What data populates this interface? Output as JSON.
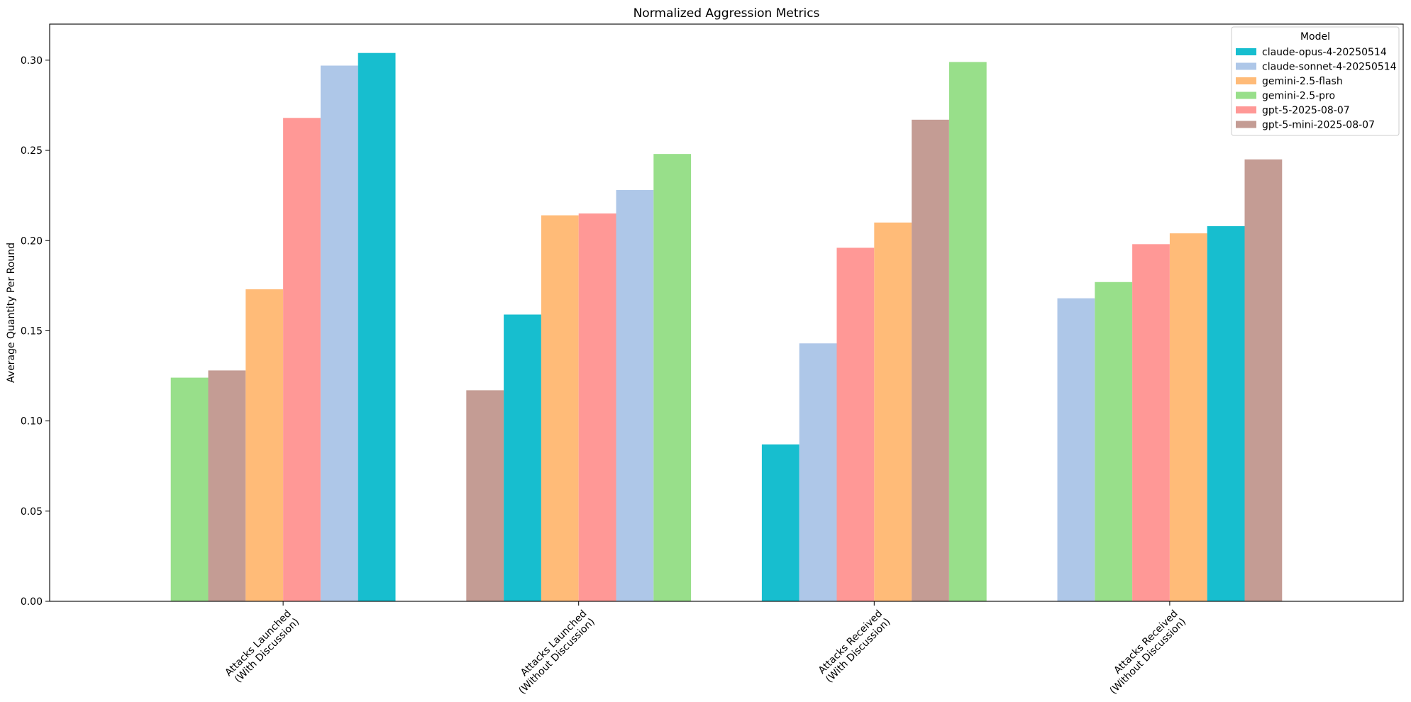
{
  "chart_data": {
    "type": "bar",
    "title": "Normalized Aggression Metrics",
    "xlabel": "",
    "ylabel": "Average Quantity Per Round",
    "ylim": [
      0,
      0.32
    ],
    "yticks": [
      "0.00",
      "0.05",
      "0.10",
      "0.15",
      "0.20",
      "0.25",
      "0.30"
    ],
    "grid": false,
    "legend": {
      "title": "Model",
      "placement": "top-right"
    },
    "categories": [
      [
        "Attacks Launched",
        "(With Discussion)"
      ],
      [
        "Attacks Launched",
        "(Without Discussion)"
      ],
      [
        "Attacks Received",
        "(With Discussion)"
      ],
      [
        "Attacks Received",
        "(Without Discussion)"
      ]
    ],
    "series": [
      {
        "name": "claude-opus-4-20250514",
        "color": "#17becf"
      },
      {
        "name": "claude-sonnet-4-20250514",
        "color": "#aec7e8"
      },
      {
        "name": "gemini-2.5-flash",
        "color": "#ffbb78"
      },
      {
        "name": "gemini-2.5-pro",
        "color": "#98df8a"
      },
      {
        "name": "gpt-5-2025-08-07",
        "color": "#ff9896"
      },
      {
        "name": "gpt-5-mini-2025-08-07",
        "color": "#c49c94"
      }
    ],
    "groups": [
      {
        "bars": [
          {
            "series": "gemini-2.5-pro",
            "value": 0.124
          },
          {
            "series": "gpt-5-mini-2025-08-07",
            "value": 0.128
          },
          {
            "series": "gemini-2.5-flash",
            "value": 0.173
          },
          {
            "series": "gpt-5-2025-08-07",
            "value": 0.268
          },
          {
            "series": "claude-sonnet-4-20250514",
            "value": 0.297
          },
          {
            "series": "claude-opus-4-20250514",
            "value": 0.304
          }
        ]
      },
      {
        "bars": [
          {
            "series": "gpt-5-mini-2025-08-07",
            "value": 0.117
          },
          {
            "series": "claude-opus-4-20250514",
            "value": 0.159
          },
          {
            "series": "gemini-2.5-flash",
            "value": 0.214
          },
          {
            "series": "gpt-5-2025-08-07",
            "value": 0.215
          },
          {
            "series": "claude-sonnet-4-20250514",
            "value": 0.228
          },
          {
            "series": "gemini-2.5-pro",
            "value": 0.248
          }
        ]
      },
      {
        "bars": [
          {
            "series": "claude-opus-4-20250514",
            "value": 0.087
          },
          {
            "series": "claude-sonnet-4-20250514",
            "value": 0.143
          },
          {
            "series": "gpt-5-2025-08-07",
            "value": 0.196
          },
          {
            "series": "gemini-2.5-flash",
            "value": 0.21
          },
          {
            "series": "gpt-5-mini-2025-08-07",
            "value": 0.267
          },
          {
            "series": "gemini-2.5-pro",
            "value": 0.299
          }
        ]
      },
      {
        "bars": [
          {
            "series": "claude-sonnet-4-20250514",
            "value": 0.168
          },
          {
            "series": "gemini-2.5-pro",
            "value": 0.177
          },
          {
            "series": "gpt-5-2025-08-07",
            "value": 0.198
          },
          {
            "series": "gemini-2.5-flash",
            "value": 0.204
          },
          {
            "series": "claude-opus-4-20250514",
            "value": 0.208
          },
          {
            "series": "gpt-5-mini-2025-08-07",
            "value": 0.245
          }
        ]
      }
    ]
  }
}
